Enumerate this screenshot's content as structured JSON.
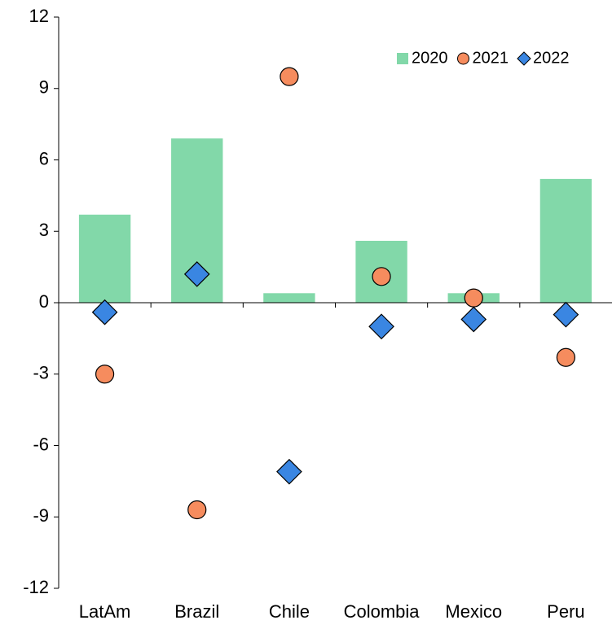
{
  "chart_data": {
    "type": "bar_scatter",
    "categories": [
      "LatAm",
      "Brazil",
      "Chile",
      "Colombia",
      "Mexico",
      "Peru"
    ],
    "series": [
      {
        "name": "2020",
        "kind": "bar",
        "color": "#82d8a9",
        "values": [
          3.7,
          6.9,
          0.4,
          2.6,
          0.4,
          5.2
        ]
      },
      {
        "name": "2021",
        "kind": "circle",
        "color": "#f68c5e",
        "values": [
          -3.0,
          -8.7,
          9.5,
          1.1,
          0.2,
          -2.3
        ]
      },
      {
        "name": "2022",
        "kind": "diamond",
        "color": "#3a86e2",
        "values": [
          -0.4,
          1.2,
          -7.1,
          -1.0,
          -0.7,
          -0.5
        ]
      }
    ],
    "ylim": [
      -12,
      12
    ],
    "yticks": [
      -12,
      -9,
      -6,
      -3,
      0,
      3,
      6,
      9,
      12
    ],
    "legend": "upper right"
  }
}
